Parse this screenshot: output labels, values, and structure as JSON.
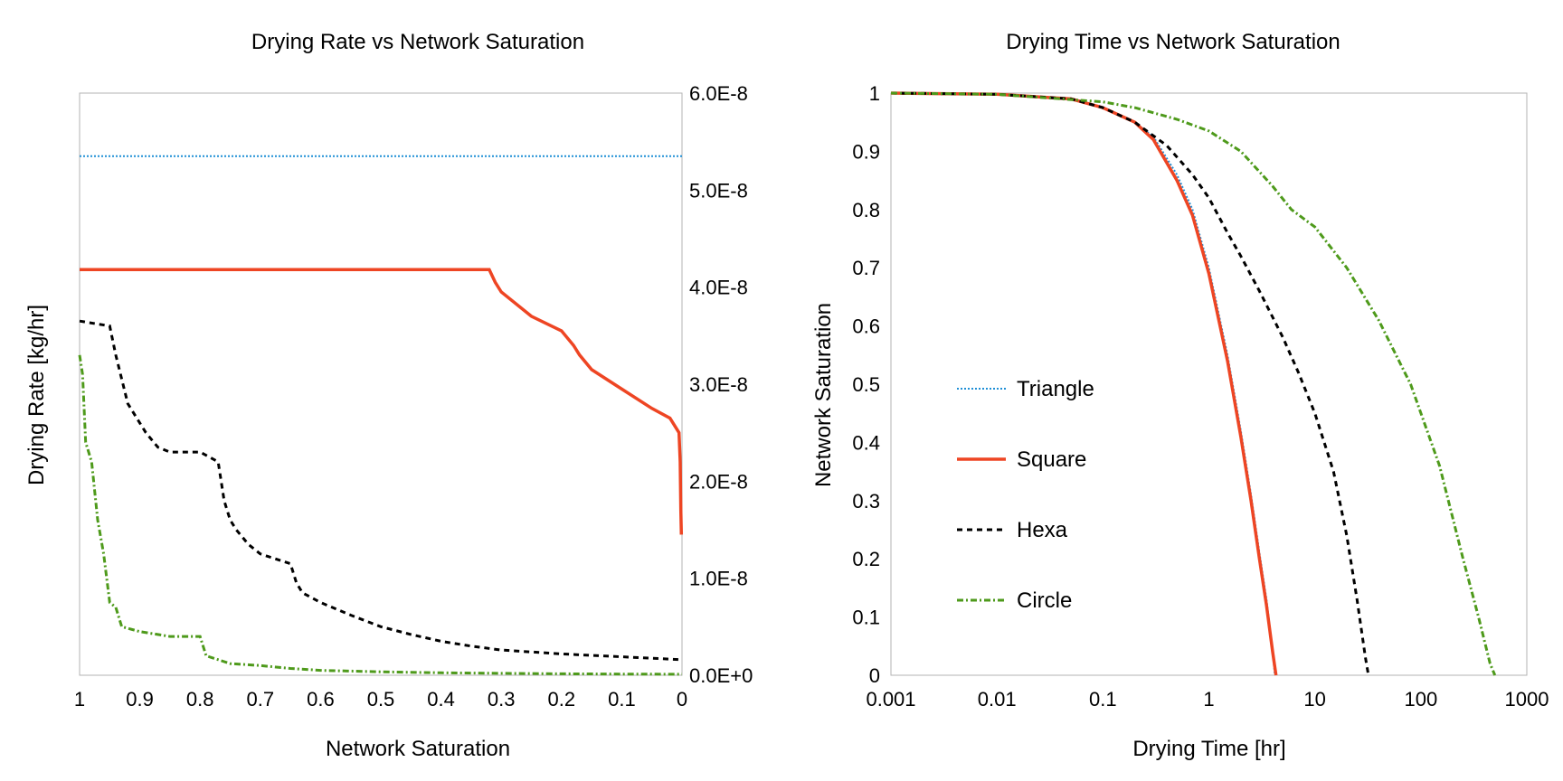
{
  "chart_data": [
    {
      "type": "line",
      "title": "Drying Rate vs Network Saturation",
      "xlabel": "Network Saturation",
      "ylabel": "Drying Rate [kg/hr]",
      "x_reversed": true,
      "xlim": [
        0,
        1
      ],
      "ylim": [
        0,
        6e-08
      ],
      "y_axis_side": "right",
      "grid": false,
      "x_ticks": [
        "1",
        "0.9",
        "0.8",
        "0.7",
        "0.6",
        "0.5",
        "0.4",
        "0.3",
        "0.2",
        "0.1",
        "0"
      ],
      "y_ticks": [
        "0.0E+0",
        "1.0E-8",
        "2.0E-8",
        "3.0E-8",
        "4.0E-8",
        "5.0E-8",
        "6.0E-8"
      ],
      "series": [
        {
          "name": "Triangle",
          "color": "#1f8fd6",
          "x": [
            1.0,
            0.0
          ],
          "y": [
            5.35e-08,
            5.35e-08
          ]
        },
        {
          "name": "Square",
          "color": "#ee4523",
          "x": [
            1.0,
            0.32,
            0.31,
            0.3,
            0.25,
            0.2,
            0.18,
            0.17,
            0.15,
            0.1,
            0.05,
            0.02,
            0.005,
            0.003,
            0.002,
            0.001
          ],
          "y": [
            4.18e-08,
            4.18e-08,
            4.05e-08,
            3.95e-08,
            3.7e-08,
            3.55e-08,
            3.4e-08,
            3.3e-08,
            3.15e-08,
            2.95e-08,
            2.75e-08,
            2.65e-08,
            2.5e-08,
            2.2e-08,
            1.7e-08,
            1.45e-08
          ]
        },
        {
          "name": "Hexa",
          "color": "#000000",
          "x": [
            1.0,
            0.95,
            0.94,
            0.92,
            0.91,
            0.89,
            0.87,
            0.85,
            0.8,
            0.77,
            0.76,
            0.75,
            0.74,
            0.72,
            0.7,
            0.65,
            0.64,
            0.63,
            0.6,
            0.55,
            0.5,
            0.45,
            0.4,
            0.35,
            0.3,
            0.2,
            0.1,
            0.0
          ],
          "y": [
            3.65e-08,
            3.6e-08,
            3.3e-08,
            2.8e-08,
            2.7e-08,
            2.5e-08,
            2.35e-08,
            2.3e-08,
            2.3e-08,
            2.2e-08,
            1.8e-08,
            1.6e-08,
            1.5e-08,
            1.35e-08,
            1.25e-08,
            1.15e-08,
            9.5e-09,
            8.5e-09,
            7.5e-09,
            6.2e-09,
            5e-09,
            4.2e-09,
            3.5e-09,
            3e-09,
            2.6e-09,
            2.2e-09,
            1.9e-09,
            1.6e-09
          ]
        },
        {
          "name": "Circle",
          "color": "#4e9a1b",
          "x": [
            1.0,
            0.995,
            0.99,
            0.98,
            0.97,
            0.96,
            0.95,
            0.94,
            0.93,
            0.9,
            0.85,
            0.8,
            0.79,
            0.75,
            0.7,
            0.65,
            0.6,
            0.5,
            0.4,
            0.3,
            0.2,
            0.1,
            0.0
          ],
          "y": [
            3.3e-08,
            3.1e-08,
            2.4e-08,
            2.2e-08,
            1.6e-08,
            1.25e-08,
            7.5e-09,
            7e-09,
            5e-09,
            4.5e-09,
            4e-09,
            4e-09,
            2e-09,
            1.2e-09,
            1e-09,
            7e-10,
            5e-10,
            3.5e-10,
            2.5e-10,
            2e-10,
            1.5e-10,
            1.2e-10,
            1e-10
          ]
        }
      ]
    },
    {
      "type": "line",
      "title": "Drying Time vs Network Saturation",
      "xlabel": "Drying Time [hr]",
      "ylabel": "Network Saturation",
      "x_scale": "log",
      "xlim": [
        0.001,
        1000
      ],
      "ylim": [
        0,
        1
      ],
      "grid": false,
      "legend_position": "left",
      "x_ticks": [
        "0.001",
        "0.01",
        "0.1",
        "1",
        "10",
        "100",
        "1000"
      ],
      "y_ticks": [
        "0",
        "0.1",
        "0.2",
        "0.3",
        "0.4",
        "0.5",
        "0.6",
        "0.7",
        "0.8",
        "0.9",
        "1"
      ],
      "series": [
        {
          "name": "Triangle",
          "color": "#1f8fd6",
          "x": [
            0.001,
            0.01,
            0.05,
            0.1,
            0.2,
            0.3,
            0.5,
            0.7,
            1.0,
            1.5,
            2.0,
            2.5,
            3.0,
            3.5,
            4.0,
            4.2
          ],
          "y": [
            1.0,
            0.998,
            0.99,
            0.975,
            0.95,
            0.925,
            0.86,
            0.8,
            0.7,
            0.55,
            0.42,
            0.31,
            0.21,
            0.13,
            0.04,
            0.0
          ]
        },
        {
          "name": "Square",
          "color": "#ee4523",
          "x": [
            0.001,
            0.01,
            0.05,
            0.1,
            0.2,
            0.3,
            0.5,
            0.7,
            1.0,
            1.5,
            2.0,
            2.5,
            3.0,
            3.5,
            4.0,
            4.3
          ],
          "y": [
            1.0,
            0.998,
            0.99,
            0.975,
            0.95,
            0.92,
            0.85,
            0.79,
            0.69,
            0.54,
            0.41,
            0.3,
            0.2,
            0.12,
            0.04,
            0.0
          ]
        },
        {
          "name": "Hexa",
          "color": "#000000",
          "x": [
            0.001,
            0.01,
            0.05,
            0.1,
            0.2,
            0.4,
            0.7,
            1.0,
            1.5,
            2.0,
            3.0,
            5.0,
            7.0,
            10.0,
            15.0,
            20.0,
            25.0,
            30.0,
            32.0
          ],
          "y": [
            1.0,
            0.998,
            0.99,
            0.975,
            0.95,
            0.91,
            0.86,
            0.82,
            0.76,
            0.72,
            0.66,
            0.58,
            0.52,
            0.45,
            0.35,
            0.24,
            0.13,
            0.03,
            0.0
          ]
        },
        {
          "name": "Circle",
          "color": "#4e9a1b",
          "x": [
            0.001,
            0.01,
            0.1,
            0.2,
            0.5,
            1.0,
            2.0,
            4.0,
            6.0,
            10.0,
            20.0,
            40.0,
            80.0,
            150.0,
            250.0,
            350.0,
            450.0,
            500.0
          ],
          "y": [
            1.0,
            0.998,
            0.985,
            0.975,
            0.955,
            0.935,
            0.9,
            0.84,
            0.8,
            0.77,
            0.7,
            0.61,
            0.5,
            0.36,
            0.2,
            0.1,
            0.02,
            0.0
          ]
        }
      ]
    }
  ]
}
